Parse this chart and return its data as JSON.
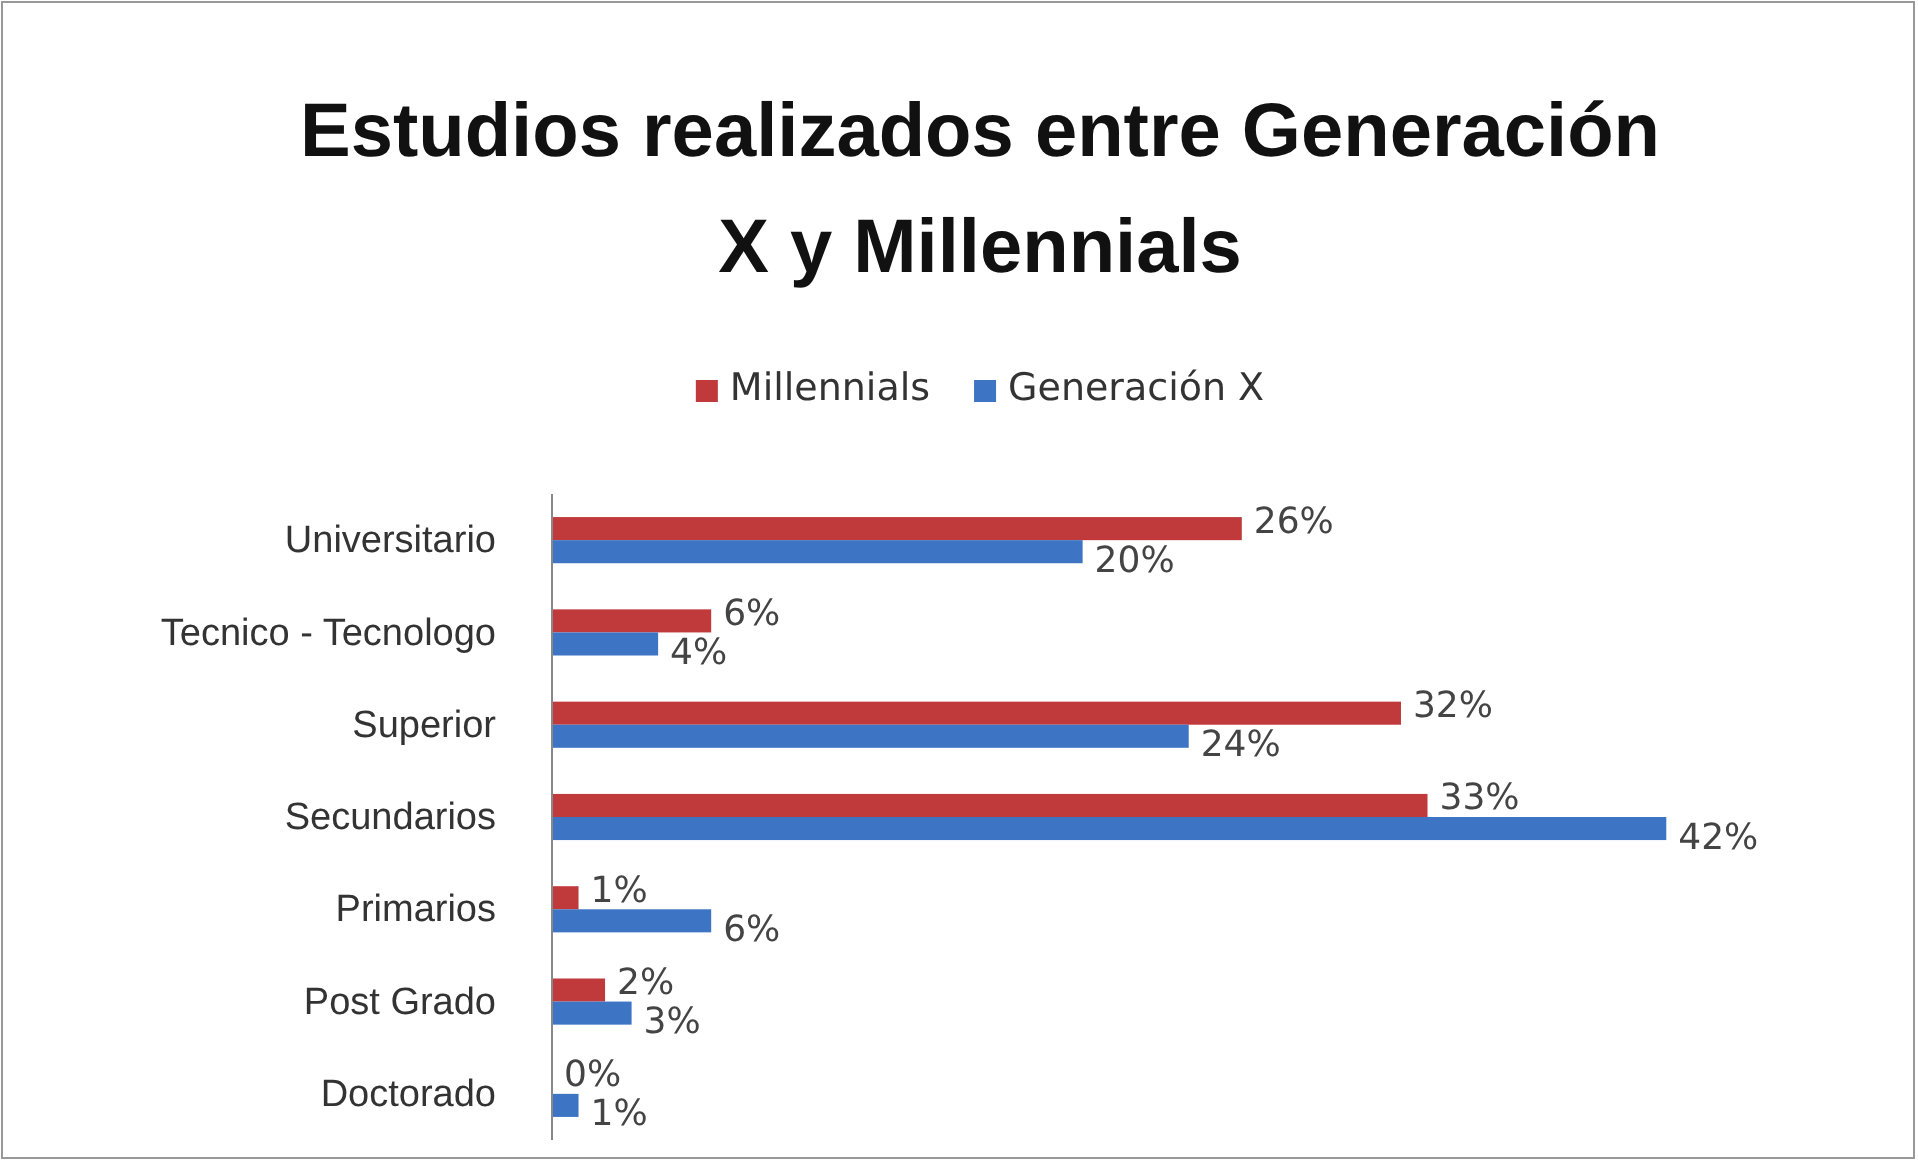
{
  "chart_data": {
    "type": "bar",
    "orientation": "horizontal",
    "title": "Estudios realizados entre Generación X y Millennials",
    "categories": [
      "Universitario",
      "Tecnico - Tecnologo",
      "Superior",
      "Secundarios",
      "Primarios",
      "Post Grado",
      "Doctorado"
    ],
    "series": [
      {
        "name": "Millennials",
        "color": "#c0393b",
        "values": [
          26,
          6,
          32,
          33,
          1,
          2,
          0
        ],
        "value_labels": [
          "26%",
          "6%",
          "32%",
          "33%",
          "1%",
          "2%",
          "0%"
        ]
      },
      {
        "name": "Generación X",
        "color": "#3e74c4",
        "values": [
          20,
          4,
          24,
          42,
          6,
          3,
          1
        ],
        "value_labels": [
          "20%",
          "4%",
          "24%",
          "42%",
          "6%",
          "3%",
          "1%"
        ]
      }
    ],
    "tick_labels": "y",
    "legend": "top",
    "grid": false
  }
}
